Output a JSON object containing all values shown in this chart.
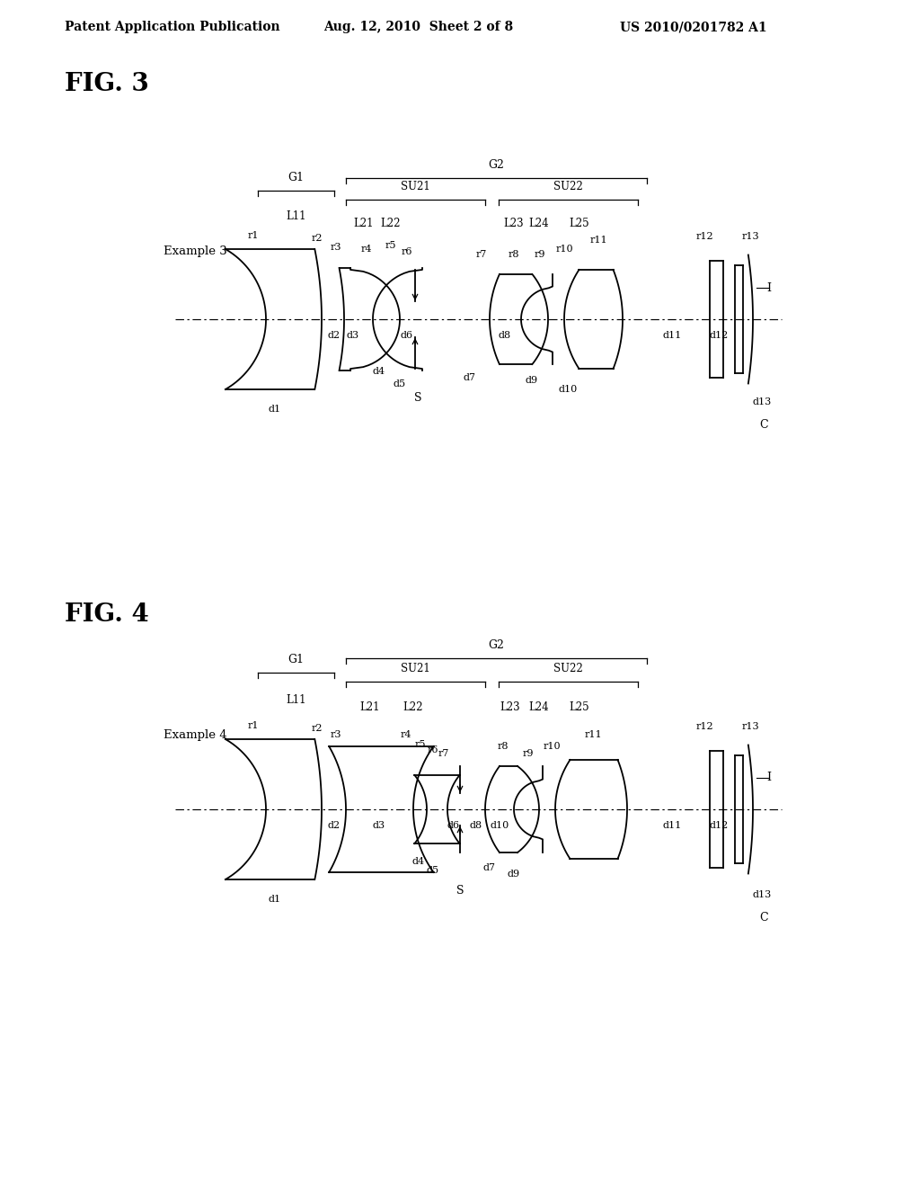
{
  "background_color": "#ffffff",
  "header_text": "Patent Application Publication",
  "header_date": "Aug. 12, 2010  Sheet 2 of 8",
  "header_patent": "US 2010/0201782 A1",
  "fig3_title": "FIG. 3",
  "fig4_title": "FIG. 4",
  "font_color": "#000000",
  "line_color": "#000000",
  "lw": 1.3
}
